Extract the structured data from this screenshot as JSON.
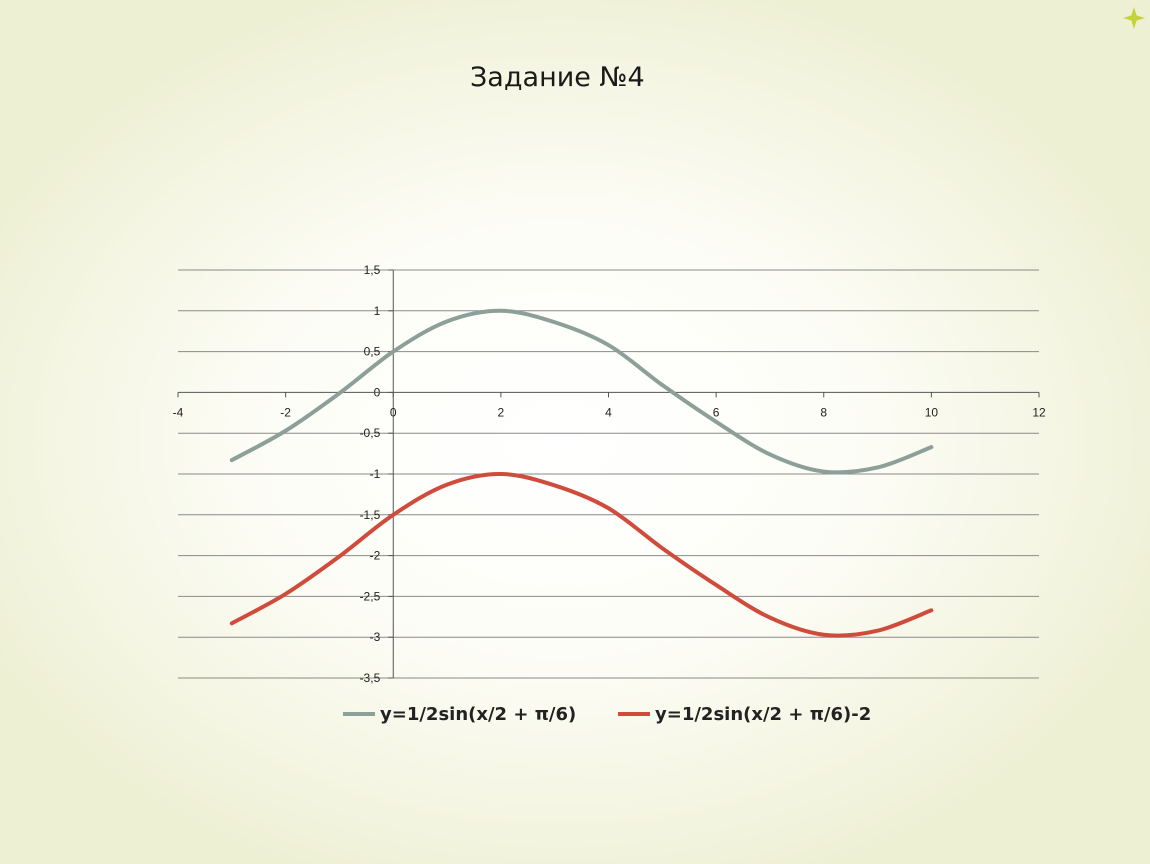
{
  "slide": {
    "title": "Задание №4"
  },
  "colors": {
    "series1": "#8c9f98",
    "series2": "#cf4b3c",
    "grid": "#8a8a8a",
    "axis": "#555555",
    "accent": "#c4d33a"
  },
  "decor": {
    "icon": "star-icon"
  },
  "chart_data": {
    "type": "line",
    "title": "",
    "xlabel": "",
    "ylabel": "",
    "xlim": [
      -4,
      12
    ],
    "ylim": [
      -3.5,
      1.5
    ],
    "grid": true,
    "legend_position": "bottom",
    "x_ticks": [
      -4,
      -2,
      0,
      2,
      4,
      6,
      8,
      10,
      12
    ],
    "x_tick_labels": [
      "-4",
      "-2",
      "0",
      "2",
      "4",
      "6",
      "8",
      "10",
      "12"
    ],
    "y_ticks": [
      1.5,
      1,
      0.5,
      0,
      -0.5,
      -1,
      -1.5,
      -2,
      -2.5,
      -3,
      -3.5
    ],
    "y_tick_labels": [
      "1,5",
      "1",
      "0,5",
      "0",
      "-0,5",
      "-1",
      "-1,5",
      "-2",
      "-2,5",
      "-3",
      "-3,5"
    ],
    "series": [
      {
        "name": "y=1/2sin(x/2 + π/6)",
        "x": [
          -3,
          -2,
          -1,
          0,
          1,
          2,
          3,
          4,
          5,
          6,
          7,
          8,
          9,
          10
        ],
        "y": [
          -0.83,
          -0.47,
          -0.01,
          0.5,
          0.87,
          1.0,
          0.86,
          0.58,
          0.09,
          -0.36,
          -0.76,
          -0.97,
          -0.92,
          -0.67
        ]
      },
      {
        "name": "y=1/2sin(x/2 + π/6)-2",
        "x": [
          -3,
          -2,
          -1,
          0,
          1,
          2,
          3,
          4,
          5,
          6,
          7,
          8,
          9,
          10
        ],
        "y": [
          -2.83,
          -2.47,
          -2.01,
          -1.5,
          -1.13,
          -1.0,
          -1.14,
          -1.42,
          -1.91,
          -2.36,
          -2.76,
          -2.97,
          -2.92,
          -2.67
        ]
      }
    ]
  }
}
